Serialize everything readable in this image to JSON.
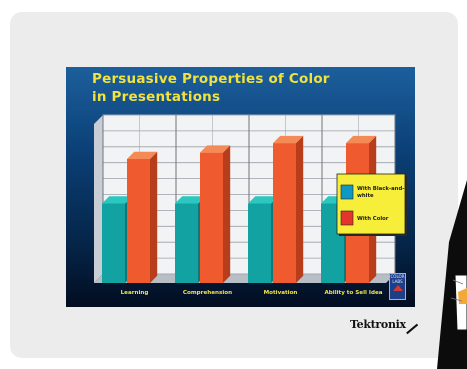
{
  "slide": {
    "title_line1": "Persuasive Properties of Color",
    "title_line2": "in Presentations"
  },
  "brand": {
    "name": "Tektronix",
    "logo_text_1": "COLOR",
    "logo_text_2": "LABS"
  },
  "chart_data": {
    "type": "bar",
    "title": "Persuasive Properties of Color in Presentations",
    "categories": [
      "Learning",
      "Comprehension",
      "Motivation",
      "Ability to Sell Idea"
    ],
    "series": [
      {
        "name": "With Black-and-white",
        "values": [
          50,
          50,
          50,
          50
        ]
      },
      {
        "name": "With Color",
        "values": [
          78,
          82,
          88,
          88
        ]
      }
    ],
    "ylim": [
      0,
      100
    ],
    "grid": true,
    "legend_placement": "right",
    "colors": {
      "bw_front": "#12a2a2",
      "bw_side": "#0b7979",
      "bw_top": "#2cc8bf",
      "color_front": "#ef5b2f",
      "color_side": "#b83d1b",
      "color_top": "#f48a55",
      "legend_bg": "#f7ee3a",
      "legend_sw_bw": "#1098c4",
      "legend_sw_color": "#e3352c"
    }
  }
}
